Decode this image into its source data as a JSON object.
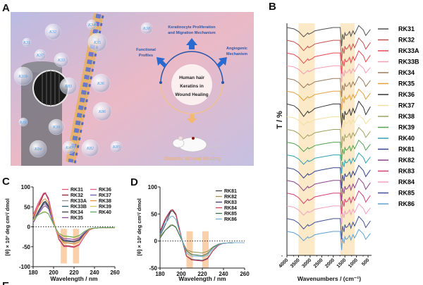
{
  "panel_labels": {
    "a": "A",
    "b": "B",
    "c": "C",
    "d": "D",
    "e": "E"
  },
  "graphical_abstract": {
    "center_text": [
      "Human hair",
      "Keratins in",
      "Wound Healing"
    ],
    "top_text": [
      "Keratinocyte Proliferation",
      "and Migration Mechanism"
    ],
    "left_text": [
      "Functional",
      "Profiles"
    ],
    "right_text": [
      "Angiogenic",
      "Mechanism"
    ],
    "bottom_text": "Diabetic Wound Healing",
    "bubble_labels": [
      "K34",
      "K32",
      "K38",
      "K31",
      "K37",
      "K33",
      "K35",
      "K33b",
      "K83",
      "K36",
      "K81",
      "K39",
      "K86",
      "K40",
      "K84",
      "K82",
      "K85"
    ],
    "background_colors": [
      "#b8b8e0",
      "#eab8c4"
    ],
    "accent_color": "#2a56a8"
  },
  "chart_data": [
    {
      "id": "B",
      "type": "line",
      "stacked_offset": true,
      "xlabel": "Wavenumbers / (cm⁻¹)",
      "ylabel": "T / %",
      "xlim": [
        4000,
        350
      ],
      "xticks": [
        4000,
        3500,
        3000,
        2500,
        2000,
        1500,
        1000,
        500
      ],
      "xtick_labels": [
        "4000",
        "3500",
        "3000",
        "2500",
        "2000",
        "1500",
        "1000",
        "500"
      ],
      "shaded_ranges": [
        [
          3500,
          2800
        ],
        [
          1700,
          1080
        ]
      ],
      "shade_color": "#fbe9c8",
      "legend": "right",
      "x": [
        4000,
        3700,
        3500,
        3280,
        3100,
        3060,
        2930,
        2800,
        2500,
        2000,
        1700,
        1640,
        1600,
        1540,
        1500,
        1450,
        1390,
        1300,
        1240,
        1150,
        1080,
        900,
        700,
        600,
        400
      ],
      "series": [
        {
          "name": "RK31",
          "color": "#505050",
          "values": [
            0,
            -1.8,
            -5.4,
            -12.6,
            -7.2,
            -9,
            -7.2,
            -4.5,
            -2.7,
            0,
            0,
            -25.2,
            -9,
            -16.2,
            -7.2,
            -10.8,
            -9.9,
            -5.4,
            -11.7,
            -4.5,
            -9,
            2.7,
            -3.6,
            -10.8,
            -2.7
          ]
        },
        {
          "name": "RK32",
          "color": "#c0504d",
          "values": [
            0,
            -2,
            -6,
            -14,
            -8,
            -10,
            -8,
            -5,
            -3,
            0,
            0,
            -28,
            -10,
            -18,
            -8,
            -12,
            -11,
            -6,
            -13,
            -5,
            -10,
            3,
            -4,
            -12,
            -3
          ]
        },
        {
          "name": "RK33A",
          "color": "#e8474f",
          "values": [
            0,
            -2,
            -6,
            -14,
            -8,
            -10,
            -8,
            -5,
            -3,
            0,
            0,
            -28,
            -10,
            -18,
            -8,
            -12,
            -11,
            -6,
            -13,
            -5,
            -10,
            3,
            -4,
            -12,
            -3
          ]
        },
        {
          "name": "RK33B",
          "color": "#f4a0b4",
          "values": [
            0,
            -1.6,
            -4.8,
            -11.2,
            -6.4,
            -8,
            -6.4,
            -4,
            -2.4,
            0,
            0,
            -22.4,
            -8,
            -14.4,
            -6.4,
            -9.6,
            -8.8,
            -4.8,
            -10.4,
            -4,
            -8,
            2.4,
            -3.2,
            -9.6,
            -2.4
          ]
        },
        {
          "name": "RK34",
          "color": "#9a7a5a",
          "values": [
            0,
            -1.8,
            -5.4,
            -12.6,
            -7.2,
            -9,
            -7.2,
            -4.5,
            -2.7,
            0,
            0,
            -25.2,
            -9,
            -16.2,
            -7.2,
            -10.8,
            -9.9,
            -5.4,
            -11.7,
            -4.5,
            -9,
            2.7,
            -3.6,
            -10.8,
            -2.7
          ]
        },
        {
          "name": "RK35",
          "color": "#e0a040",
          "values": [
            0,
            -1.8,
            -5.4,
            -12.6,
            -7.2,
            -9,
            -7.2,
            -4.5,
            -2.7,
            0,
            0,
            -25.2,
            -9,
            -16.2,
            -7.2,
            -10.8,
            -9.9,
            -5.4,
            -11.7,
            -4.5,
            -9,
            2.7,
            -3.6,
            -10.8,
            -2.7
          ]
        },
        {
          "name": "RK36",
          "color": "#333333",
          "values": [
            0,
            -2.4,
            -7.2,
            -16.8,
            -9.6,
            -12,
            -9.6,
            -6,
            -3.6,
            0,
            0,
            -33.6,
            -12,
            -21.6,
            -9.6,
            -14.4,
            -13.2,
            -7.2,
            -15.6,
            -6,
            -12,
            3.6,
            -4.8,
            -14.4,
            -3.6
          ]
        },
        {
          "name": "RK37",
          "color": "#f2dfa0",
          "values": [
            0,
            -1.6,
            -4.8,
            -11.2,
            -6.4,
            -8,
            -6.4,
            -4,
            -2.4,
            0,
            0,
            -22.4,
            -8,
            -14.4,
            -6.4,
            -9.6,
            -8.8,
            -4.8,
            -10.4,
            -4,
            -8,
            2.4,
            -3.2,
            -9.6,
            -2.4
          ]
        },
        {
          "name": "RK38",
          "color": "#a0a060",
          "values": [
            0,
            -1.8,
            -5.4,
            -12.6,
            -7.2,
            -9,
            -7.2,
            -4.5,
            -2.7,
            0,
            0,
            -25.2,
            -9,
            -16.2,
            -7.2,
            -10.8,
            -9.9,
            -5.4,
            -11.7,
            -4.5,
            -9,
            2.7,
            -3.6,
            -10.8,
            -2.7
          ]
        },
        {
          "name": "RK39",
          "color": "#50a050",
          "values": [
            0,
            -1.8,
            -5.4,
            -12.6,
            -7.2,
            -9,
            -7.2,
            -4.5,
            -2.7,
            0,
            0,
            -25.2,
            -9,
            -16.2,
            -7.2,
            -10.8,
            -9.9,
            -5.4,
            -11.7,
            -4.5,
            -9,
            2.7,
            -3.6,
            -10.8,
            -2.7
          ]
        },
        {
          "name": "RK40",
          "color": "#30a0b0",
          "values": [
            0,
            -1.8,
            -5.4,
            -12.6,
            -7.2,
            -9,
            -7.2,
            -4.5,
            -2.7,
            0,
            0,
            -25.2,
            -9,
            -16.2,
            -7.2,
            -10.8,
            -9.9,
            -5.4,
            -11.7,
            -4.5,
            -9,
            2.7,
            -3.6,
            -10.8,
            -2.7
          ]
        },
        {
          "name": "RK81",
          "color": "#334488",
          "values": [
            0,
            -2,
            -6,
            -14,
            -8,
            -10,
            -8,
            -5,
            -3,
            0,
            0,
            -28,
            -10,
            -18,
            -8,
            -12,
            -11,
            -6,
            -13,
            -5,
            -10,
            3,
            -4,
            -12,
            -3
          ]
        },
        {
          "name": "RK82",
          "color": "#884488",
          "values": [
            0,
            -2,
            -6,
            -14,
            -8,
            -10,
            -8,
            -5,
            -3,
            0,
            0,
            -28,
            -10,
            -18,
            -8,
            -12,
            -11,
            -6,
            -13,
            -5,
            -10,
            3,
            -4,
            -12,
            -3
          ]
        },
        {
          "name": "RK83",
          "color": "#d04070",
          "values": [
            0,
            -2,
            -6,
            -14,
            -8,
            -10,
            -8,
            -5,
            -3,
            0,
            0,
            -28,
            -10,
            -18,
            -8,
            -12,
            -11,
            -6,
            -13,
            -5,
            -10,
            3,
            -4,
            -12,
            -3
          ]
        },
        {
          "name": "RK84",
          "color": "#f0a0c0",
          "values": [
            0,
            -1.8,
            -5.4,
            -12.6,
            -7.2,
            -9,
            -7.2,
            -4.5,
            -2.7,
            0,
            0,
            -25.2,
            -9,
            -16.2,
            -7.2,
            -10.8,
            -9.9,
            -5.4,
            -11.7,
            -4.5,
            -9,
            2.7,
            -3.6,
            -10.8,
            -2.7
          ]
        },
        {
          "name": "RK85",
          "color": "#405090",
          "values": [
            0,
            -2,
            -6,
            -14,
            -8,
            -10,
            -8,
            -5,
            -3,
            0,
            0,
            -28,
            -10,
            -18,
            -8,
            -12,
            -11,
            -6,
            -13,
            -5,
            -10,
            3,
            -4,
            -12,
            -3
          ]
        },
        {
          "name": "RK86",
          "color": "#60a0d0",
          "values": [
            0,
            -1.8,
            -5.4,
            -12.6,
            -7.2,
            -9,
            -7.2,
            -4.5,
            -2.7,
            0,
            0,
            -25.2,
            -9,
            -16.2,
            -7.2,
            -10.8,
            -9.9,
            -5.4,
            -11.7,
            -4.5,
            -9,
            2.7,
            -3.6,
            -10.8,
            -2.7
          ]
        }
      ]
    },
    {
      "id": "C",
      "type": "line",
      "xlabel": "Wavelength / nm",
      "ylabel": "[θ] × 10³ deg cm²/ dmol",
      "xlim": [
        180,
        260
      ],
      "ylim": [
        -100,
        100
      ],
      "xticks": [
        "180",
        "200",
        "220",
        "240",
        "260"
      ],
      "yticks": [
        "100",
        "50",
        "0",
        "-50",
        "-100"
      ],
      "shaded_ranges": [
        [
          207,
          213
        ],
        [
          219,
          225
        ]
      ],
      "shaded_y": [
        -92,
        -5
      ],
      "shade_color": "#f8c89a",
      "zero_line": "dotted",
      "legend": "top-right",
      "x": [
        180,
        185,
        190,
        192,
        195,
        200,
        205,
        210,
        215,
        220,
        225,
        230,
        235,
        240,
        250,
        260
      ],
      "series": [
        {
          "name": "RK31",
          "color": "#e05070",
          "values": [
            28,
            55,
            82,
            85,
            70,
            15,
            -30,
            -48,
            -48,
            -50,
            -45,
            -25,
            -8,
            -3,
            -2,
            -2
          ]
        },
        {
          "name": "RK32",
          "color": "#8b2030",
          "values": [
            20,
            50,
            80,
            84,
            68,
            12,
            -30,
            -48,
            -48,
            -51,
            -45,
            -25,
            -8,
            -3,
            -2,
            -2
          ]
        },
        {
          "name": "RK33A",
          "color": "#909090",
          "values": [
            15,
            40,
            62,
            65,
            55,
            12,
            -25,
            -40,
            -40,
            -42,
            -38,
            -20,
            -7,
            -3,
            -2,
            -2
          ]
        },
        {
          "name": "RK33B",
          "color": "#2f6070",
          "values": [
            10,
            35,
            58,
            62,
            50,
            10,
            -25,
            -35,
            -36,
            -38,
            -33,
            -18,
            -6,
            -3,
            -2,
            -2
          ]
        },
        {
          "name": "RK34",
          "color": "#404040",
          "values": [
            12,
            38,
            60,
            63,
            52,
            10,
            -25,
            -36,
            -37,
            -38,
            -34,
            -18,
            -6,
            -3,
            -2,
            -2
          ]
        },
        {
          "name": "RK35",
          "color": "#8a4a9a",
          "values": [
            10,
            32,
            50,
            53,
            45,
            8,
            -20,
            -30,
            -30,
            -32,
            -28,
            -15,
            -5,
            -3,
            -2,
            -2
          ]
        },
        {
          "name": "RK36",
          "color": "#e06090",
          "values": [
            30,
            60,
            84,
            86,
            72,
            14,
            -32,
            -50,
            -50,
            -52,
            -46,
            -25,
            -8,
            -3,
            -2,
            -2
          ]
        },
        {
          "name": "RK37",
          "color": "#6a5aa8",
          "values": [
            12,
            35,
            55,
            58,
            48,
            9,
            -22,
            -33,
            -34,
            -36,
            -31,
            -16,
            -6,
            -3,
            -2,
            -2
          ]
        },
        {
          "name": "RK38",
          "color": "#e89040",
          "values": [
            25,
            50,
            68,
            70,
            60,
            12,
            -25,
            -40,
            -41,
            -43,
            -38,
            -20,
            -7,
            -3,
            -2,
            -2
          ]
        },
        {
          "name": "RK39",
          "color": "#d8c860",
          "values": [
            15,
            30,
            38,
            38,
            33,
            6,
            -18,
            -25,
            -25,
            -27,
            -23,
            -12,
            -5,
            -3,
            -2,
            -2
          ]
        },
        {
          "name": "RK40",
          "color": "#60a860",
          "values": [
            18,
            30,
            36,
            37,
            32,
            6,
            -16,
            -23,
            -24,
            -26,
            -22,
            -12,
            -5,
            -3,
            -2,
            -2
          ]
        }
      ]
    },
    {
      "id": "D",
      "type": "line",
      "xlabel": "Wavelength / nm",
      "ylabel": "[θ] × 10³ deg cm²/ dmol",
      "xlim": [
        180,
        260
      ],
      "ylim": [
        -50,
        100
      ],
      "xticks": [
        "180",
        "200",
        "220",
        "240",
        "260"
      ],
      "yticks": [
        "100",
        "50",
        "0",
        "-50"
      ],
      "shaded_ranges": [
        [
          205,
          211
        ],
        [
          220,
          226
        ]
      ],
      "shaded_y": [
        -50,
        18
      ],
      "shade_color": "#f8c89a",
      "zero_line": "dotted",
      "legend": "top-right",
      "x": [
        180,
        185,
        190,
        192,
        195,
        200,
        205,
        210,
        215,
        220,
        225,
        230,
        235,
        240,
        250,
        260
      ],
      "series": [
        {
          "name": "RK81",
          "color": "#404040",
          "values": [
            10,
            30,
            54,
            56,
            48,
            8,
            -28,
            -35,
            -35,
            -36,
            -32,
            -18,
            -8,
            -4,
            -3,
            -3
          ]
        },
        {
          "name": "RK82",
          "color": "#9a9050",
          "values": [
            8,
            20,
            30,
            30,
            26,
            5,
            -16,
            -20,
            -21,
            -22,
            -19,
            -11,
            -6,
            -4,
            -3,
            -3
          ]
        },
        {
          "name": "RK83",
          "color": "#3a3a70",
          "values": [
            15,
            38,
            56,
            58,
            50,
            8,
            -28,
            -34,
            -35,
            -36,
            -32,
            -18,
            -8,
            -4,
            -3,
            -3
          ]
        },
        {
          "name": "RK84",
          "color": "#c84050",
          "values": [
            18,
            42,
            57,
            58,
            50,
            9,
            -28,
            -35,
            -36,
            -37,
            -33,
            -18,
            -8,
            -4,
            -3,
            -3
          ]
        },
        {
          "name": "RK85",
          "color": "#3a7050",
          "values": [
            5,
            20,
            28,
            29,
            25,
            4,
            -18,
            -25,
            -26,
            -27,
            -23,
            -12,
            -6,
            -4,
            -3,
            -3
          ]
        },
        {
          "name": "RK86",
          "color": "#70b0d0",
          "values": [
            12,
            32,
            45,
            46,
            40,
            7,
            -22,
            -28,
            -28,
            -29,
            -26,
            -15,
            -7,
            -4,
            -3,
            -3
          ]
        }
      ]
    }
  ]
}
